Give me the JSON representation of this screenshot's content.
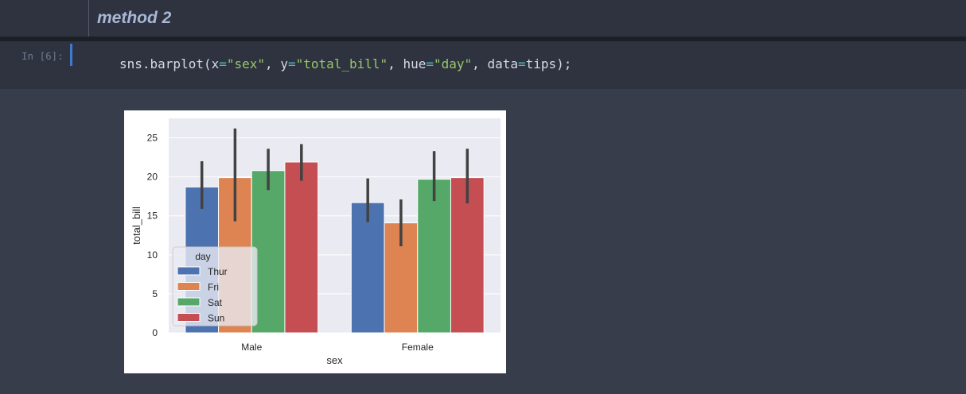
{
  "markdown_cell": {
    "heading": "method 2"
  },
  "code_cell": {
    "prompt": "In [6]:",
    "code_tokens": [
      {
        "t": "sns.barplot(x",
        "c": "plain"
      },
      {
        "t": "=",
        "c": "op"
      },
      {
        "t": "\"sex\"",
        "c": "str"
      },
      {
        "t": ", y",
        "c": "plain"
      },
      {
        "t": "=",
        "c": "op"
      },
      {
        "t": "\"total_bill\"",
        "c": "str"
      },
      {
        "t": ", hue",
        "c": "plain"
      },
      {
        "t": "=",
        "c": "op"
      },
      {
        "t": "\"day\"",
        "c": "str"
      },
      {
        "t": ", data",
        "c": "plain"
      },
      {
        "t": "=",
        "c": "op"
      },
      {
        "t": "tips);",
        "c": "plain"
      }
    ]
  },
  "chart_data": {
    "type": "bar",
    "xlabel": "sex",
    "ylabel": "total_bill",
    "categories": [
      "Male",
      "Female"
    ],
    "ylim": [
      0,
      27.5
    ],
    "yticks": [
      0,
      5,
      10,
      15,
      20,
      25
    ],
    "grid": true,
    "legend": {
      "title": "day",
      "placement": "center-left"
    },
    "series": [
      {
        "name": "Thur",
        "color": "#4c72b0",
        "values": [
          18.7,
          16.7
        ],
        "ci_low": [
          15.9,
          14.2
        ],
        "ci_high": [
          22.0,
          19.8
        ]
      },
      {
        "name": "Fri",
        "color": "#dd8452",
        "values": [
          19.9,
          14.1
        ],
        "ci_low": [
          14.3,
          11.1
        ],
        "ci_high": [
          26.2,
          17.1
        ]
      },
      {
        "name": "Sat",
        "color": "#55a868",
        "values": [
          20.8,
          19.7
        ],
        "ci_low": [
          18.3,
          16.9
        ],
        "ci_high": [
          23.6,
          23.3
        ]
      },
      {
        "name": "Sun",
        "color": "#c44e52",
        "values": [
          21.9,
          19.9
        ],
        "ci_low": [
          19.5,
          16.6
        ],
        "ci_high": [
          24.2,
          23.6
        ]
      }
    ]
  }
}
